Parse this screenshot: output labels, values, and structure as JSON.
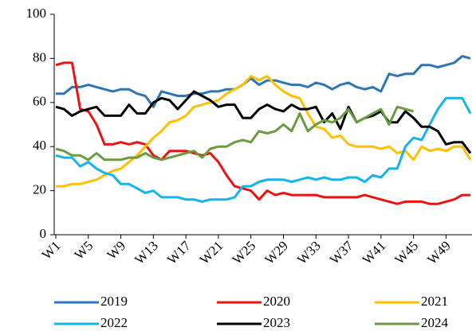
{
  "chart_data": {
    "type": "line",
    "categories": [
      "W1",
      null,
      null,
      null,
      "W5",
      null,
      null,
      null,
      "W9",
      null,
      null,
      null,
      "W13",
      null,
      null,
      null,
      "W17",
      null,
      null,
      null,
      "W21",
      null,
      null,
      null,
      "W25",
      null,
      null,
      null,
      "W29",
      null,
      null,
      null,
      "W33",
      null,
      null,
      null,
      "W37",
      null,
      null,
      null,
      "W41",
      null,
      null,
      null,
      "W45",
      null,
      null,
      null,
      "W49",
      null,
      null,
      null
    ],
    "series": [
      {
        "name": "2019",
        "color": "#2e75b6",
        "values": [
          64,
          64,
          67,
          67,
          68,
          67,
          66,
          65,
          66,
          66,
          64,
          63,
          58,
          65,
          64,
          63,
          63,
          64,
          64,
          65,
          65,
          66,
          66,
          68,
          71,
          68,
          70,
          70,
          69,
          68,
          68,
          67,
          69,
          68,
          66,
          68,
          69,
          67,
          66,
          67,
          65,
          73,
          72,
          73,
          73,
          77,
          77,
          76,
          77,
          78,
          81,
          80
        ]
      },
      {
        "name": "2020",
        "color": "#ee1111",
        "values": [
          77,
          78,
          78,
          57,
          56,
          50,
          41,
          41,
          42,
          41,
          42,
          41,
          36,
          34,
          38,
          38,
          38,
          37,
          36,
          37,
          33,
          27,
          22,
          21,
          20,
          16,
          20,
          18,
          19,
          18,
          18,
          18,
          18,
          17,
          17,
          17,
          17,
          17,
          18,
          17,
          16,
          15,
          14,
          15,
          15,
          15,
          14,
          14,
          15,
          16,
          18,
          18
        ]
      },
      {
        "name": "2021",
        "color": "#ffc000",
        "values": [
          22,
          22,
          23,
          23,
          24,
          25,
          27,
          29,
          30,
          33,
          36,
          40,
          44,
          47,
          51,
          52,
          54,
          58,
          59,
          60,
          61,
          64,
          66,
          68,
          72,
          70,
          72,
          68,
          65,
          63,
          62,
          55,
          49,
          48,
          44,
          45,
          41,
          40,
          40,
          40,
          39,
          40,
          37,
          38,
          34,
          40,
          38,
          39,
          38,
          40,
          40,
          34
        ]
      },
      {
        "name": "2022",
        "color": "#14b4ec",
        "values": [
          36,
          35,
          35,
          31,
          33,
          30,
          28,
          27,
          23,
          23,
          21,
          19,
          20,
          17,
          17,
          17,
          16,
          16,
          15,
          16,
          16,
          16,
          17,
          22,
          22,
          24,
          25,
          25,
          25,
          24,
          25,
          26,
          25,
          26,
          25,
          25,
          26,
          26,
          24,
          27,
          26,
          30,
          30,
          40,
          44,
          43,
          50,
          57,
          62,
          62,
          62,
          55
        ]
      },
      {
        "name": "2023",
        "color": "#000000",
        "values": [
          58,
          57,
          54,
          56,
          57,
          58,
          54,
          54,
          54,
          59,
          55,
          55,
          60,
          62,
          61,
          57,
          61,
          65,
          63,
          61,
          58,
          59,
          59,
          53,
          53,
          57,
          59,
          57,
          56,
          59,
          57,
          57,
          58,
          51,
          55,
          48,
          58,
          51,
          53,
          54,
          56,
          51,
          51,
          56,
          53,
          49,
          49,
          47,
          41,
          42,
          42,
          37
        ]
      },
      {
        "name": "2024",
        "color": "#6a9c3f",
        "values": [
          39,
          38,
          36,
          36,
          34,
          37,
          34,
          34,
          34,
          35,
          35,
          37,
          35,
          34,
          35,
          36,
          37,
          38,
          35,
          39,
          40,
          40,
          42,
          43,
          42,
          47,
          46,
          47,
          50,
          47,
          55,
          47,
          50,
          52,
          51,
          53,
          57,
          51,
          53,
          55,
          57,
          50,
          58,
          57,
          56,
          null,
          null,
          null,
          null,
          null,
          null,
          null
        ]
      }
    ],
    "ylim": [
      0,
      100
    ],
    "yticks": [
      0,
      20,
      40,
      60,
      80,
      100
    ],
    "grid": false,
    "legend": "bottom"
  }
}
